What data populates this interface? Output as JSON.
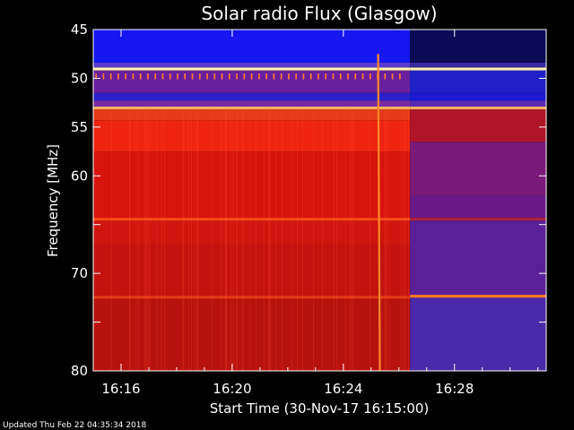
{
  "chart_data": {
    "type": "heatmap",
    "title": "Solar radio Flux (Glasgow)",
    "xlabel": "Start Time (30-Nov-17 16:15:00)",
    "ylabel": "Frequency [MHz]",
    "start_time": "16:15:00",
    "x_range_minutes": [
      0,
      16.3
    ],
    "ylim": [
      45,
      80
    ],
    "y_ticks": [
      45,
      50,
      55,
      60,
      65,
      70,
      75,
      80
    ],
    "y_tick_labels": [
      "45",
      "50",
      "55",
      "60",
      "",
      "70",
      "",
      "80"
    ],
    "x_ticks": [
      {
        "minute": 1,
        "label": "16:16"
      },
      {
        "minute": 5,
        "label": "16:20"
      },
      {
        "minute": 9,
        "label": "16:24"
      },
      {
        "minute": 13,
        "label": "16:28"
      }
    ],
    "regions": [
      {
        "name": "early",
        "t_start": 0,
        "t_end": 11.4,
        "bands": [
          {
            "f0": 45.0,
            "f1": 48.4,
            "color": "#1616f0"
          },
          {
            "f0": 48.4,
            "f1": 48.9,
            "color": "#5a3ad0"
          },
          {
            "f0": 48.9,
            "f1": 49.2,
            "color": "#fff2b0"
          },
          {
            "f0": 49.2,
            "f1": 51.5,
            "color": "#6a1f9c"
          },
          {
            "f0": 51.5,
            "f1": 52.3,
            "color": "#2a22c8"
          },
          {
            "f0": 52.3,
            "f1": 52.9,
            "color": "#7a2aa0"
          },
          {
            "f0": 52.9,
            "f1": 53.2,
            "color": "#ffb060"
          },
          {
            "f0": 53.2,
            "f1": 54.3,
            "color": "#e63a18"
          },
          {
            "f0": 54.3,
            "f1": 57.5,
            "color": "#ee2410"
          },
          {
            "f0": 57.5,
            "f1": 64.3,
            "color": "#d8140e"
          },
          {
            "f0": 64.3,
            "f1": 64.6,
            "color": "#ff4a1a"
          },
          {
            "f0": 64.6,
            "f1": 67.0,
            "color": "#d0140e"
          },
          {
            "f0": 67.0,
            "f1": 72.3,
            "color": "#c4120e"
          },
          {
            "f0": 72.3,
            "f1": 72.6,
            "color": "#e83a18"
          },
          {
            "f0": 72.6,
            "f1": 80.0,
            "color": "#b8120e"
          }
        ]
      },
      {
        "name": "late",
        "t_start": 11.4,
        "t_end": 16.3,
        "bands": [
          {
            "f0": 45.0,
            "f1": 48.4,
            "color": "#0a0a55"
          },
          {
            "f0": 48.4,
            "f1": 48.9,
            "color": "#3a2aa0"
          },
          {
            "f0": 48.9,
            "f1": 49.2,
            "color": "#fff2b0"
          },
          {
            "f0": 49.2,
            "f1": 51.5,
            "color": "#2020c8"
          },
          {
            "f0": 51.5,
            "f1": 52.3,
            "color": "#1a1ad0"
          },
          {
            "f0": 52.3,
            "f1": 52.9,
            "color": "#5a2ab0"
          },
          {
            "f0": 52.9,
            "f1": 53.2,
            "color": "#ffb060"
          },
          {
            "f0": 53.2,
            "f1": 56.5,
            "color": "#b01428"
          },
          {
            "f0": 56.5,
            "f1": 62.0,
            "color": "#7a1a78"
          },
          {
            "f0": 62.0,
            "f1": 64.3,
            "color": "#6a1a88"
          },
          {
            "f0": 64.3,
            "f1": 64.6,
            "color": "#b02040"
          },
          {
            "f0": 64.6,
            "f1": 72.2,
            "color": "#5a2098"
          },
          {
            "f0": 72.2,
            "f1": 72.5,
            "color": "#ff7a30"
          },
          {
            "f0": 72.5,
            "f1": 80.0,
            "color": "#4a2aa8"
          }
        ]
      }
    ],
    "burst": {
      "minute": 10.25,
      "f0": 47.5,
      "f1": 80.0,
      "color": "#ff8a2a"
    },
    "colors": {
      "background": "#000000",
      "axis": "#ffffff",
      "text": "#ffffff"
    }
  },
  "footer": {
    "updated": "Updated Thu Feb 22 04:35:34 2018"
  }
}
